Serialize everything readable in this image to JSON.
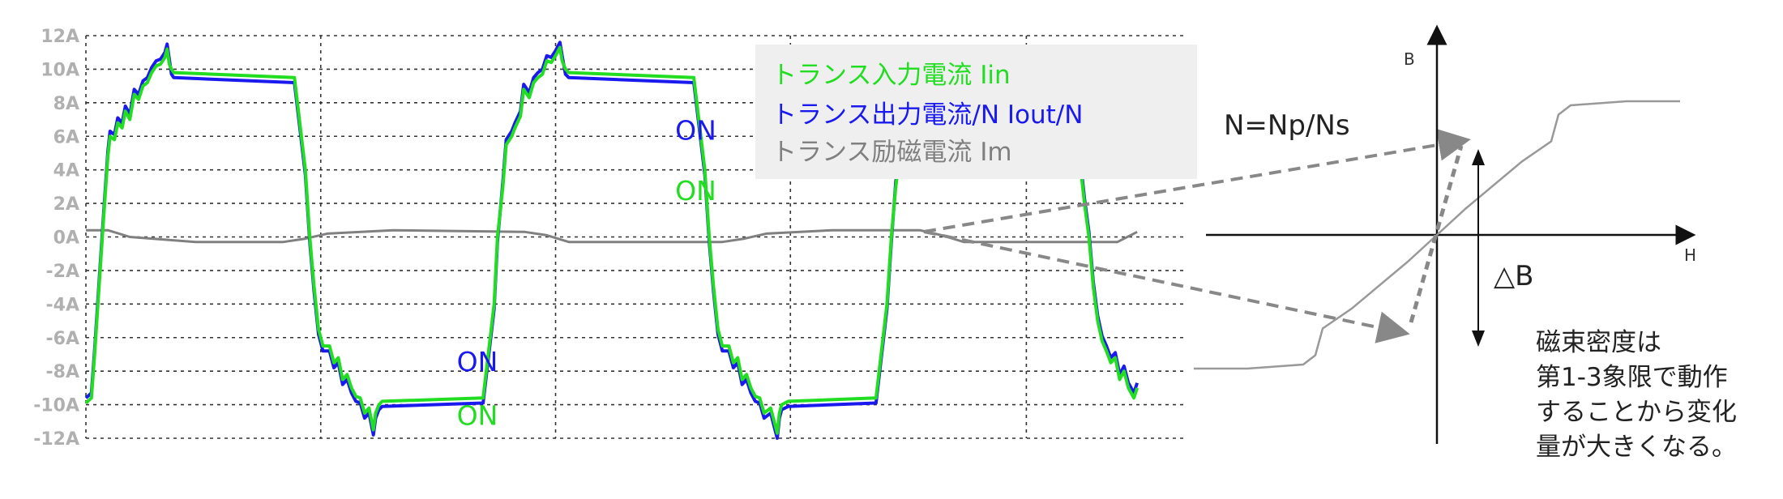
{
  "chart_data": [
    {
      "type": "line",
      "y_tick_labels": [
        "12A",
        "10A",
        "8A",
        "6A",
        "4A",
        "2A",
        "0A",
        "-2A",
        "-4A",
        "-6A",
        "-8A",
        "-10A",
        "-12A"
      ],
      "ylim": [
        -12,
        12
      ],
      "xlim": [
        0,
        1000
      ],
      "x_grid": [
        0,
        214,
        428,
        642,
        857
      ],
      "y_grid": [
        -12,
        -10,
        -8,
        -6,
        -4,
        -2,
        0,
        2,
        4,
        6,
        8,
        10,
        12
      ],
      "grid": true,
      "legend_position": "top-right",
      "series": [
        {
          "name": "トランス入力電流 Iin",
          "color": "#22dd22",
          "x": [
            0,
            5,
            8,
            12,
            16,
            20,
            22,
            26,
            29,
            33,
            36,
            40,
            44,
            48,
            52,
            56,
            60,
            64,
            68,
            72,
            74,
            76,
            78,
            80,
            190,
            200,
            204,
            208,
            212,
            216,
            222,
            226,
            230,
            234,
            238,
            242,
            246,
            250,
            254,
            258,
            262,
            264,
            267,
            270,
            362,
            372,
            375,
            380,
            383,
            388,
            391,
            396,
            399,
            404,
            408,
            412,
            416,
            420,
            424,
            428,
            432,
            434,
            437,
            440,
            554,
            564,
            568,
            572,
            576,
            580,
            586,
            590,
            594,
            598,
            602,
            606,
            610,
            614,
            618,
            624,
            630,
            632,
            634,
            640,
            720,
            730,
            734,
            738,
            742,
            746,
            748,
            750,
            753,
            756,
            900,
            910,
            914,
            918,
            922,
            926,
            930,
            934,
            938,
            942,
            946,
            950,
            955,
            958
          ],
          "y": [
            -9.9,
            -9.6,
            -7,
            -3,
            1,
            4.8,
            6,
            5.8,
            6.8,
            6.5,
            7.5,
            7,
            8.5,
            8.2,
            9,
            9.2,
            9.8,
            10.2,
            10.3,
            10.7,
            11.2,
            10.3,
            10,
            9.8,
            9.5,
            4,
            0,
            -3,
            -5.5,
            -6.5,
            -6.5,
            -7.5,
            -7.2,
            -8.5,
            -8.2,
            -9,
            -9.5,
            -9.6,
            -10.5,
            -10.2,
            -11.5,
            -10.5,
            -10,
            -9.8,
            -9.6,
            -4,
            0,
            3,
            5.5,
            6,
            6.5,
            7.2,
            8.8,
            8.3,
            9.2,
            9.5,
            9.7,
            10.5,
            10.4,
            10.8,
            11.3,
            10.5,
            10,
            9.8,
            9.5,
            4,
            0,
            -3,
            -5.5,
            -6.5,
            -6.5,
            -7.5,
            -7.2,
            -8.5,
            -8.2,
            -9,
            -9.5,
            -9.6,
            -10.5,
            -10.2,
            -11.7,
            -10.5,
            -10,
            -9.8,
            -9.6,
            -4,
            0,
            3,
            5,
            6,
            6.5,
            7,
            8,
            9.5,
            8,
            2,
            0,
            -3,
            -5,
            -6.2,
            -6.8,
            -7.5,
            -7.2,
            -8.5,
            -8,
            -9,
            -9.6,
            -9
          ]
        },
        {
          "name": "トランス出力電流/N Iout/N",
          "color": "#1a1aee",
          "x": [
            0,
            5,
            8,
            12,
            16,
            20,
            22,
            26,
            29,
            33,
            36,
            40,
            44,
            48,
            52,
            56,
            60,
            64,
            68,
            72,
            74,
            76,
            78,
            80,
            190,
            200,
            204,
            208,
            212,
            216,
            222,
            226,
            230,
            234,
            238,
            242,
            246,
            250,
            254,
            258,
            262,
            264,
            267,
            270,
            362,
            372,
            375,
            380,
            383,
            388,
            391,
            396,
            399,
            404,
            408,
            412,
            416,
            420,
            424,
            428,
            432,
            434,
            437,
            440,
            554,
            564,
            568,
            572,
            576,
            580,
            586,
            590,
            594,
            598,
            602,
            606,
            610,
            614,
            618,
            624,
            630,
            632,
            634,
            640,
            720,
            730,
            734,
            738,
            742,
            746,
            748,
            750,
            753,
            756,
            900,
            910,
            914,
            918,
            922,
            926,
            930,
            934,
            938,
            942,
            946,
            950,
            955,
            958
          ],
          "y": [
            -9.6,
            -9.3,
            -6.7,
            -2.7,
            1.3,
            5.1,
            6.3,
            6.1,
            7.1,
            6.8,
            7.8,
            7.3,
            8.8,
            8.5,
            9.3,
            9.5,
            10.1,
            10.5,
            10.6,
            11,
            11.5,
            10.6,
            9.7,
            9.5,
            9.2,
            3.7,
            -0.3,
            -3.3,
            -5.8,
            -6.8,
            -6.8,
            -7.8,
            -7.5,
            -8.8,
            -8.5,
            -9.3,
            -9.8,
            -9.9,
            -10.8,
            -10.5,
            -11.8,
            -10.8,
            -10.3,
            -10.1,
            -9.9,
            -4.3,
            -0.3,
            3.3,
            5.8,
            6.3,
            6.8,
            7.5,
            9.1,
            8.6,
            9.5,
            9.8,
            10,
            10.8,
            10.7,
            11.1,
            11.6,
            10.8,
            9.7,
            9.5,
            9.2,
            3.7,
            -0.3,
            -3.3,
            -5.8,
            -6.8,
            -6.8,
            -7.8,
            -7.5,
            -8.8,
            -8.5,
            -9.3,
            -9.8,
            -9.9,
            -10.8,
            -10.5,
            -12,
            -10.8,
            -10.3,
            -10.1,
            -9.9,
            -4.3,
            -0.3,
            3.3,
            5.3,
            6.3,
            6.8,
            7.3,
            8.3,
            9.8,
            8.3,
            2.3,
            0.3,
            -2.7,
            -4.7,
            -5.9,
            -6.5,
            -7.2,
            -6.9,
            -8.2,
            -7.7,
            -8.7,
            -9.3,
            -8.7
          ]
        },
        {
          "name": "トランス励磁電流 Im",
          "color": "#808080",
          "x": [
            0,
            20,
            40,
            100,
            180,
            200,
            220,
            280,
            400,
            420,
            440,
            500,
            580,
            600,
            620,
            680,
            760,
            780,
            800,
            860,
            940,
            958
          ],
          "y": [
            0.4,
            0.4,
            0,
            -0.3,
            -0.3,
            -0.1,
            0.2,
            0.4,
            0.3,
            0.1,
            -0.3,
            -0.3,
            -0.3,
            -0.1,
            0.2,
            0.4,
            0.4,
            0.1,
            -0.3,
            -0.3,
            -0.3,
            0.3
          ]
        }
      ],
      "legend": [
        {
          "text": "トランス入力電流  Iin",
          "color": "#22dd22"
        },
        {
          "text": "トランス出力電流/N  Iout/N",
          "color": "#1a1aee"
        },
        {
          "text": "トランス励磁電流  Im",
          "color": "#808080"
        }
      ],
      "annotations": [
        {
          "text": "ON",
          "color": "#1a1aee",
          "x": 537,
          "y": 5.8
        },
        {
          "text": "ON",
          "color": "#22dd22",
          "x": 537,
          "y": 2.2
        },
        {
          "text": "ON",
          "color": "#1a1aee",
          "x": 338,
          "y": -8
        },
        {
          "text": "ON",
          "color": "#22dd22",
          "x": 338,
          "y": -11.2
        }
      ]
    },
    {
      "type": "line",
      "xlabel": "H",
      "ylabel": "B",
      "labels": {
        "ratio": "N=Np/Ns",
        "delta_b": "△B",
        "note_lines": [
          "磁束密度は",
          "第1-3象限で動作",
          "することから変化",
          "量が大きくなる。"
        ]
      },
      "series": [
        {
          "name": "",
          "color": "#999999",
          "x": [
            -1,
            -0.78,
            -0.55,
            -0.5,
            -0.47,
            -0.35,
            -0.12,
            0,
            0.12,
            0.35,
            0.47,
            0.5,
            0.55,
            0.78,
            1
          ],
          "y": [
            -1,
            -1,
            -0.97,
            -0.9,
            -0.7,
            -0.55,
            -0.2,
            0,
            0.2,
            0.55,
            0.7,
            0.9,
            0.97,
            1,
            1
          ]
        }
      ]
    }
  ]
}
